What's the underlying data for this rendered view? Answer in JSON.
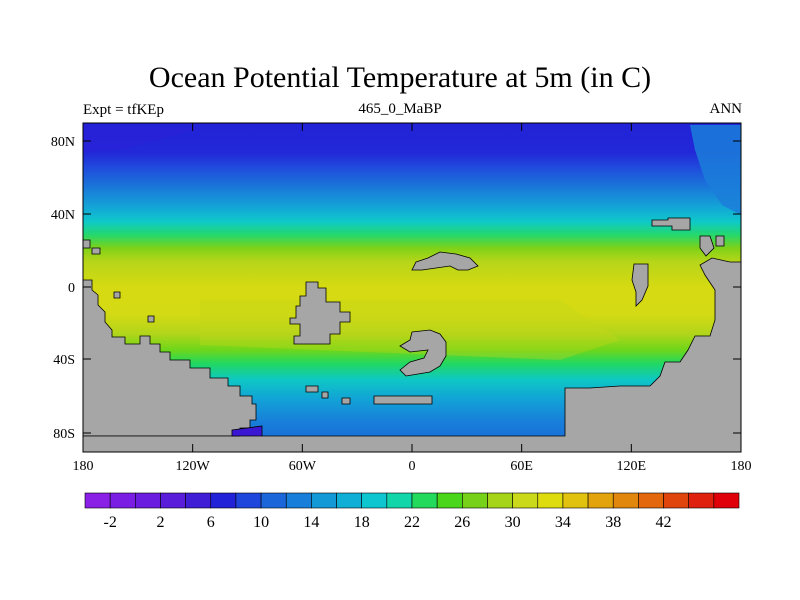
{
  "header": {
    "title": "Ocean Potential Temperature at 5m (in C)",
    "left_string": "Expt = tfKEp",
    "center_string": "465_0_MaBP",
    "right_string": "ANN"
  },
  "map": {
    "x_tick_labels": [
      "180",
      "120W",
      "60W",
      "0",
      "60E",
      "120E",
      "180"
    ],
    "y_tick_labels": [
      "80N",
      "40N",
      "0",
      "40S",
      "80S"
    ],
    "land_color": "#a6a6a6"
  },
  "colorbar": {
    "tick_labels": [
      "-2",
      "2",
      "6",
      "10",
      "14",
      "18",
      "22",
      "26",
      "30",
      "34",
      "38",
      "42"
    ],
    "colors": [
      "#8a1fe6",
      "#7a1ee4",
      "#6a1ddf",
      "#5a1dd9",
      "#3f1ed6",
      "#2222d8",
      "#1f46dc",
      "#1b66d9",
      "#177fd9",
      "#1499d7",
      "#10b0d6",
      "#0ec6cf",
      "#10d6a9",
      "#24da5d",
      "#49d61b",
      "#76d118",
      "#a6d419",
      "#cbd91b",
      "#dedb0f",
      "#e1c20e",
      "#e2a30d",
      "#e2870e",
      "#e2670d",
      "#e0450d",
      "#e0200e",
      "#e00009"
    ]
  }
}
